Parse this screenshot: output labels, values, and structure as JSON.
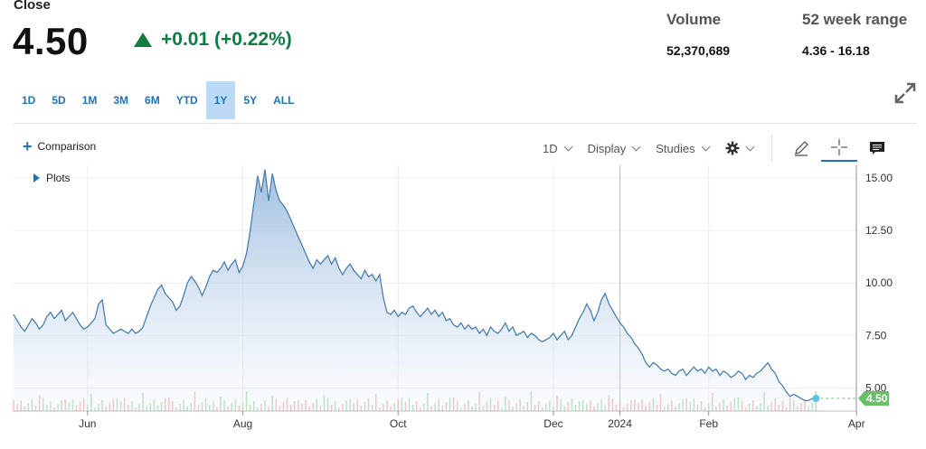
{
  "quote": {
    "close_label": "Close",
    "price": "4.50",
    "change": "+0.01 (+0.22%)",
    "change_color": "#107c41"
  },
  "stats": {
    "volume_label": "Volume",
    "volume_value": "52,370,689",
    "range_label": "52 week range",
    "range_value": "4.36 - 16.18"
  },
  "range_buttons": [
    "1D",
    "5D",
    "1M",
    "3M",
    "6M",
    "YTD",
    "1Y",
    "5Y",
    "ALL"
  ],
  "active_range": "1Y",
  "toolbar": {
    "comparison": "Comparison",
    "interval": "1D",
    "display": "Display",
    "studies": "Studies",
    "plots": "Plots"
  },
  "icons": [
    "expand-icon",
    "plus-icon",
    "gear-icon",
    "pencil-icon",
    "crosshair-icon",
    "comment-icon",
    "triangle-right-icon"
  ],
  "colors": {
    "accent": "#1e73be",
    "line": "#4a7fb0",
    "price_tag": "#6abf6a"
  },
  "chart_data": {
    "type": "area",
    "x_tick_labels": [
      "Jun",
      "Aug",
      "Oct",
      "Dec",
      "2024",
      "Feb",
      "Apr"
    ],
    "x_tick_index": [
      20,
      62,
      104,
      146,
      164,
      188,
      228
    ],
    "y_tick_labels": [
      "5.00",
      "7.50",
      "10.00",
      "12.50",
      "15.00"
    ],
    "y_ticks": [
      5.0,
      7.5,
      10.0,
      12.5,
      15.0
    ],
    "ylim": [
      3.9,
      15.6
    ],
    "last_price_label": "4.50",
    "grid": true,
    "values": [
      8.5,
      8.2,
      7.9,
      7.7,
      8.0,
      8.3,
      8.1,
      7.8,
      8.0,
      8.4,
      8.6,
      8.3,
      8.5,
      8.7,
      8.2,
      8.4,
      8.6,
      8.3,
      8.0,
      7.8,
      7.9,
      8.1,
      8.3,
      9.0,
      9.2,
      8.0,
      7.8,
      7.6,
      7.7,
      7.8,
      7.7,
      7.6,
      7.8,
      7.6,
      7.7,
      7.9,
      8.4,
      8.9,
      9.3,
      9.7,
      9.9,
      9.5,
      9.3,
      9.1,
      8.7,
      8.9,
      9.4,
      10.0,
      10.3,
      10.1,
      9.8,
      9.4,
      9.8,
      10.3,
      10.6,
      10.5,
      10.7,
      11.0,
      10.6,
      10.9,
      11.1,
      10.5,
      10.8,
      11.4,
      12.5,
      13.8,
      15.1,
      14.3,
      15.4,
      13.9,
      15.2,
      14.4,
      13.9,
      13.7,
      13.4,
      13.0,
      12.6,
      12.2,
      11.8,
      11.4,
      11.0,
      10.7,
      11.1,
      10.9,
      11.1,
      11.3,
      10.9,
      11.2,
      10.7,
      10.4,
      10.7,
      10.9,
      10.6,
      10.4,
      10.2,
      10.6,
      10.3,
      10.4,
      10.1,
      10.4,
      9.3,
      8.6,
      8.5,
      8.7,
      8.4,
      8.6,
      8.5,
      8.8,
      8.9,
      8.6,
      8.4,
      8.6,
      8.8,
      8.5,
      8.7,
      8.4,
      8.6,
      8.2,
      8.3,
      8.0,
      7.9,
      8.1,
      7.8,
      8.0,
      7.8,
      7.9,
      7.6,
      7.8,
      7.5,
      7.9,
      7.7,
      7.6,
      7.8,
      8.1,
      7.7,
      7.9,
      7.5,
      7.6,
      7.7,
      7.4,
      7.6,
      7.5,
      7.3,
      7.2,
      7.3,
      7.4,
      7.6,
      7.3,
      7.5,
      7.7,
      7.3,
      7.5,
      7.9,
      8.3,
      8.6,
      9.0,
      8.7,
      8.2,
      8.6,
      9.2,
      9.5,
      9.0,
      8.7,
      8.4,
      8.1,
      7.9,
      7.6,
      7.4,
      7.1,
      6.9,
      6.6,
      6.2,
      6.0,
      6.2,
      6.1,
      5.9,
      5.8,
      5.9,
      5.7,
      5.6,
      5.8,
      5.9,
      5.6,
      5.8,
      6.0,
      5.8,
      5.9,
      5.7,
      6.0,
      5.8,
      5.9,
      5.6,
      5.8,
      5.7,
      5.5,
      5.6,
      5.8,
      5.7,
      5.4,
      5.6,
      5.5,
      5.7,
      5.8,
      6.0,
      6.2,
      5.9,
      5.7,
      5.3,
      5.1,
      4.8,
      4.6,
      4.7,
      4.6,
      4.5,
      4.4,
      4.4,
      4.5,
      4.5
    ]
  }
}
